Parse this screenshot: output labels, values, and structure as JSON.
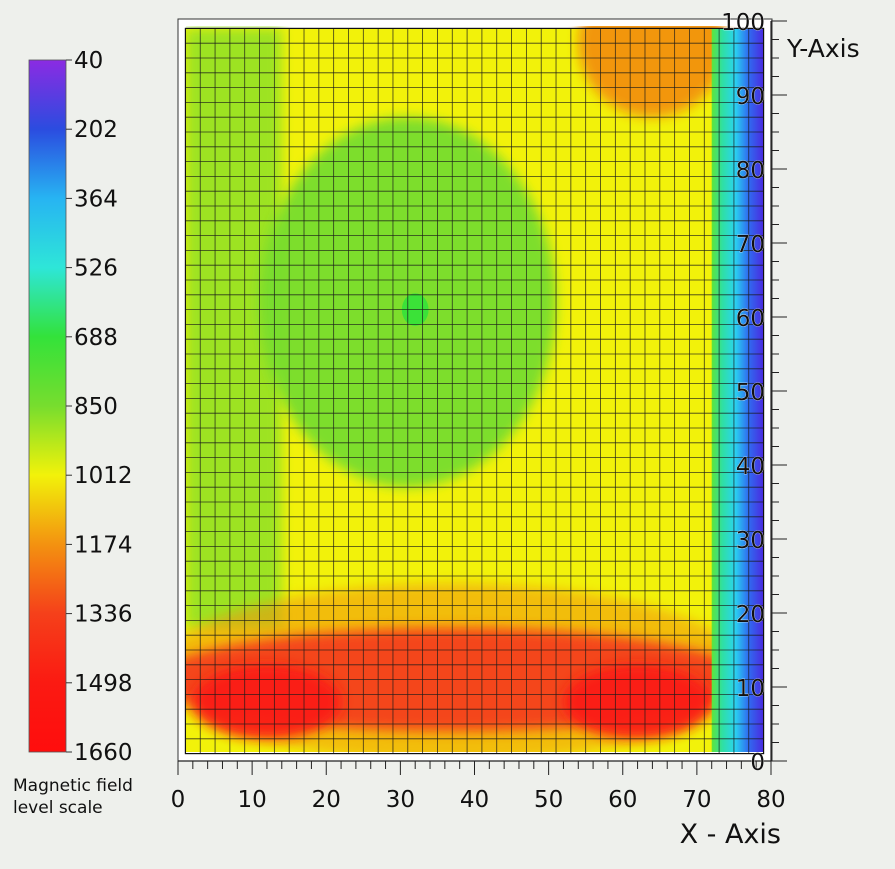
{
  "colorbar": {
    "ticks": [
      "40",
      "202",
      "364",
      "526",
      "688",
      "850",
      "1012",
      "1174",
      "1336",
      "1498",
      "1660"
    ],
    "caption_line1": "Magnetic field",
    "caption_line2": "level scale",
    "stops": [
      "#8b2be2",
      "#2b4ce0",
      "#27b4f2",
      "#2ee6d8",
      "#33e23a",
      "#77dd2e",
      "#f2f20a",
      "#f39210",
      "#f5401a",
      "#fb1a12",
      "#ff0d0d"
    ]
  },
  "chart_data": {
    "type": "heatmap",
    "title": "",
    "xlabel": "X - Axis",
    "ylabel": "Y-Axis",
    "xlim": [
      0,
      80
    ],
    "ylim": [
      0,
      100
    ],
    "x_ticks": [
      "0",
      "10",
      "20",
      "30",
      "40",
      "50",
      "60",
      "70",
      "80"
    ],
    "y_ticks": [
      "0",
      "10",
      "20",
      "30",
      "40",
      "50",
      "60",
      "70",
      "80",
      "90",
      "100"
    ],
    "grid": true,
    "colorbar_range": [
      40,
      1660
    ],
    "data_extent": {
      "x": [
        1,
        79
      ],
      "y": [
        1,
        99
      ]
    },
    "regions": [
      {
        "name": "field-low-center",
        "level": 850,
        "cx": 31,
        "cy": 62,
        "rx": 20,
        "ry": 25
      },
      {
        "name": "field-minimum-spot",
        "level": 700,
        "cx": 32,
        "cy": 61,
        "rx": 1.8,
        "ry": 2.2
      },
      {
        "name": "field-high-bottom-band",
        "level": 1336,
        "cx": 37,
        "cy": 11,
        "rx": 40,
        "ry": 7
      },
      {
        "name": "field-peak-left",
        "level": 1498,
        "cx": 12,
        "cy": 8,
        "rx": 10,
        "ry": 5
      },
      {
        "name": "field-peak-right",
        "level": 1498,
        "cx": 62,
        "cy": 8,
        "rx": 10,
        "ry": 5
      },
      {
        "name": "field-high-top-right",
        "level": 1174,
        "cx": 64,
        "cy": 97,
        "rx": 10,
        "ry": 10
      },
      {
        "name": "field-edge-drop",
        "level": 40,
        "x_from": 72,
        "x_to": 79
      }
    ]
  }
}
